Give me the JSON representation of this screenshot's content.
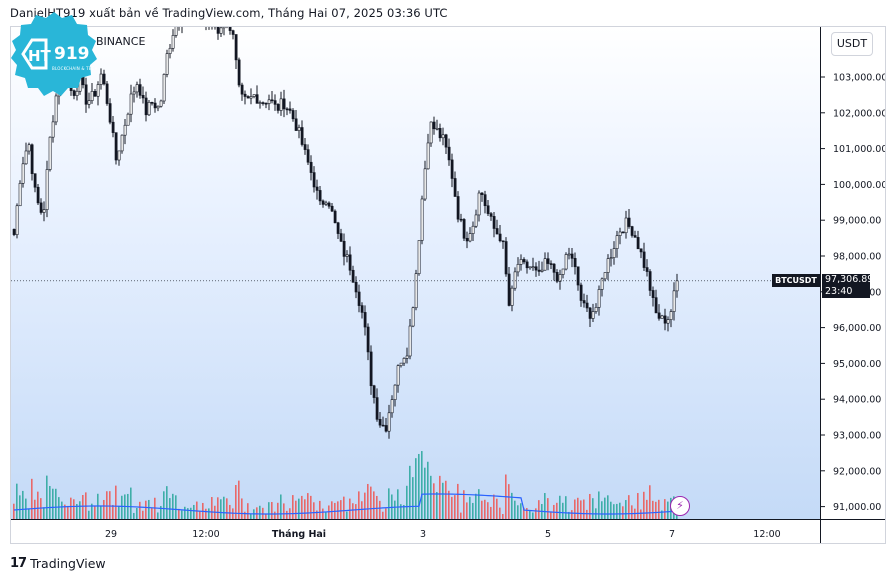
{
  "header": {
    "published_text": "DanielHT919 xuất bản về TradingView.com, Tháng Hai 07, 2025 03:36 UTC"
  },
  "logo": {
    "brand": "919",
    "tagline": "BLOCKCHAIN & TECH"
  },
  "symbol": {
    "exchange_label": "BINANCE",
    "ticker": "BTCUSDT",
    "last_price": "97,306.89",
    "countdown": "23:40"
  },
  "price_axis": {
    "currency": "USDT",
    "ticks": [
      "103,000.00",
      "102,000.00",
      "101,000.00",
      "100,000.00",
      "99,000.00",
      "98,000.00",
      "97,000.00",
      "96,000.00",
      "95,000.00",
      "94,000.00",
      "93,000.00",
      "92,000.00",
      "91,000.00"
    ]
  },
  "time_axis": {
    "ticks": [
      "29",
      "12:00",
      "Tháng Hai",
      "3",
      "5",
      "7",
      "12:00"
    ]
  },
  "footer": {
    "brand": "TradingView"
  },
  "colors": {
    "candle": "#131722",
    "volume_up": "#26a69a",
    "volume_down": "#ef5350",
    "volume_ma": "#2962ff",
    "lightning": "#9c27b0"
  },
  "chart_data": {
    "type": "candlestick",
    "timeframe": "1h",
    "ylim": [
      90400,
      104000
    ],
    "x_tick_labels": [
      "29",
      "12:00",
      "Tháng Hai",
      "3",
      "5",
      "7",
      "12:00"
    ],
    "y_tick_labels": [
      "103,000.00",
      "102,000.00",
      "101,000.00",
      "100,000.00",
      "99,000.00",
      "98,000.00",
      "97,000.00",
      "96,000.00",
      "95,000.00",
      "94,000.00",
      "93,000.00",
      "92,000.00",
      "91,000.00"
    ],
    "close_path": [
      98600,
      100500,
      101200,
      99600,
      99100,
      101400,
      102800,
      103200,
      102500,
      102900,
      102300,
      102500,
      103100,
      102100,
      100700,
      101500,
      102400,
      102900,
      102000,
      102300,
      102100,
      103600,
      104400,
      104700,
      104800,
      104900,
      104500,
      104600,
      104300,
      104700,
      104200,
      102400,
      102300,
      102500,
      102300,
      102400,
      102100,
      102300,
      102000,
      101500,
      100800,
      100200,
      99400,
      99700,
      98900,
      98200,
      97800,
      97100,
      96200,
      94500,
      93400,
      93200,
      94200,
      95100,
      95400,
      97100,
      99600,
      101700,
      101500,
      101200,
      100400,
      99100,
      98500,
      98900,
      99900,
      99200,
      98700,
      98500,
      96500,
      97800,
      97700,
      97700,
      97400,
      97800,
      97600,
      97300,
      98200,
      97600,
      96600,
      96400,
      96600,
      97600,
      98100,
      98700,
      98900,
      98700,
      98100,
      97400,
      96400,
      96200,
      96300,
      97300
    ],
    "last_close": 97306.89
  }
}
